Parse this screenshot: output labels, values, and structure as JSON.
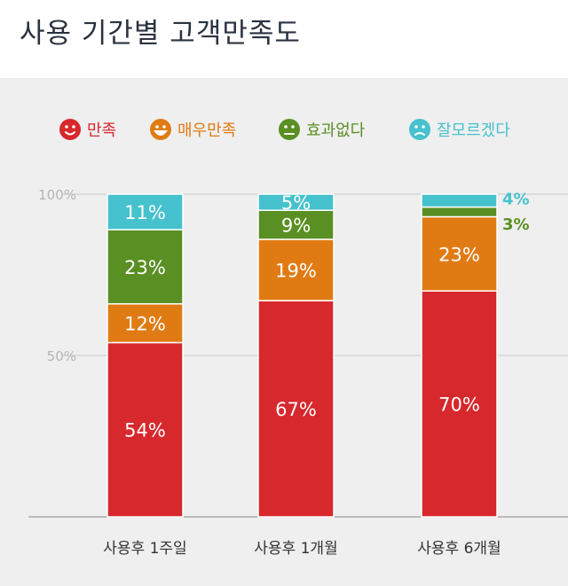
{
  "page": {
    "title": "사용 기간별 고객만족도"
  },
  "legend": [
    {
      "label": "만족",
      "color": "#d7282d",
      "icon": "smile-face-icon"
    },
    {
      "label": "매우만족",
      "color": "#e07b14",
      "icon": "big-smile-face-icon"
    },
    {
      "label": "효과없다",
      "color": "#5a8f23",
      "icon": "neutral-face-icon"
    },
    {
      "label": "잘모르겠다",
      "color": "#45c2cd",
      "icon": "confused-face-icon"
    }
  ],
  "chart_data": {
    "type": "bar",
    "stacked": true,
    "categories": [
      "사용후 1주일",
      "사용후 1개월",
      "사용후 6개월"
    ],
    "series": [
      {
        "name": "만족",
        "color": "#d7282d",
        "values": [
          54,
          67,
          70
        ]
      },
      {
        "name": "매우만족",
        "color": "#e07b14",
        "values": [
          12,
          19,
          23
        ]
      },
      {
        "name": "효과없다",
        "color": "#5a8f23",
        "values": [
          23,
          9,
          3
        ]
      },
      {
        "name": "잘모르겠다",
        "color": "#45c2cd",
        "values": [
          11,
          5,
          4
        ]
      }
    ],
    "data_labels": [
      [
        "54%",
        "12%",
        "23%",
        "11%"
      ],
      [
        "67%",
        "19%",
        "9%",
        "5%"
      ],
      [
        "70%",
        "23%",
        "3%",
        "4%"
      ]
    ],
    "y_ticks": [
      "100%",
      "50%"
    ],
    "ylim": [
      0,
      100
    ],
    "grid": true,
    "legend_position": "top"
  }
}
